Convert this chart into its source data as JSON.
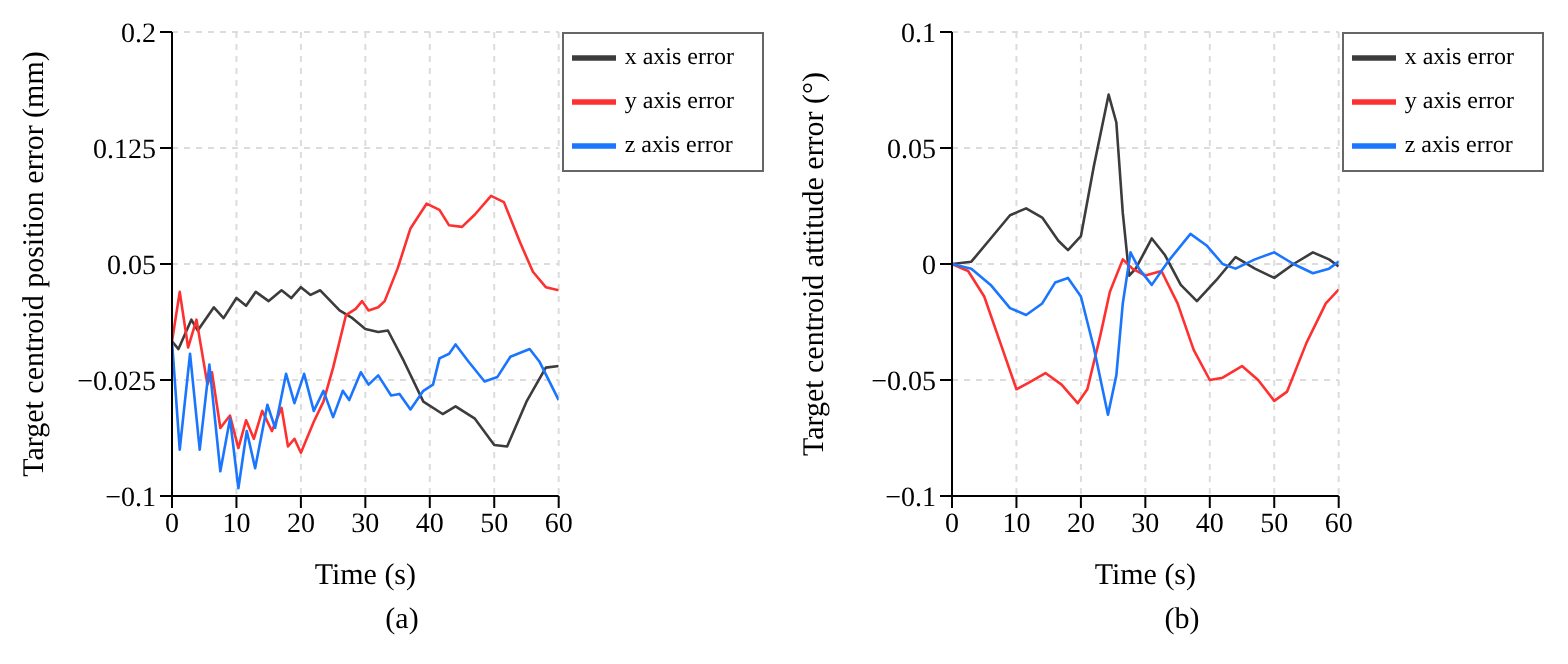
{
  "chart_data": [
    {
      "type": "line",
      "xlabel": "Time (s)",
      "ylabel": "Target centroid position error (mm)",
      "xlim": [
        0,
        60
      ],
      "xticks": [
        0,
        10,
        20,
        30,
        40,
        50,
        60
      ],
      "ylim": [
        -0.1,
        0.2
      ],
      "yticks": [
        0.2,
        0.125,
        0.05,
        -0.025,
        -0.1
      ],
      "grid": true,
      "legend": "top right",
      "annotations": [
        "(a)"
      ],
      "series": [
        {
          "name": "x axis error",
          "color": "#3c3c3c",
          "x": [
            0,
            1,
            3,
            4,
            6.5,
            8,
            10,
            11.5,
            13,
            15,
            17,
            18.5,
            20,
            21.5,
            23,
            26,
            28,
            30,
            32,
            33.5,
            36,
            39,
            42,
            44,
            47,
            50,
            52,
            55,
            58,
            60
          ],
          "values": [
            0,
            -0.005,
            0.014,
            0.007,
            0.022,
            0.015,
            0.028,
            0.023,
            0.032,
            0.026,
            0.033,
            0.028,
            0.035,
            0.03,
            0.033,
            0.02,
            0.015,
            0.008,
            0.006,
            0.007,
            -0.013,
            -0.039,
            -0.047,
            -0.042,
            -0.05,
            -0.067,
            -0.068,
            -0.039,
            -0.017,
            -0.016
          ]
        },
        {
          "name": "y axis error",
          "color": "#ff3030",
          "x": [
            0,
            1.2,
            2.5,
            3.8,
            5.5,
            6.2,
            7.5,
            9,
            10.3,
            11.5,
            12.7,
            14,
            15.5,
            17,
            18,
            19,
            20,
            22,
            23.5,
            25,
            27,
            28.5,
            29.5,
            30.5,
            32,
            33,
            35,
            37,
            39.5,
            41.5,
            43,
            45,
            47,
            49.5,
            51.5,
            54,
            56,
            58,
            60
          ],
          "values": [
            0,
            0.032,
            -0.004,
            0.014,
            -0.028,
            -0.02,
            -0.056,
            -0.048,
            -0.069,
            -0.051,
            -0.063,
            -0.045,
            -0.058,
            -0.043,
            -0.068,
            -0.063,
            -0.072,
            -0.052,
            -0.039,
            -0.017,
            0.017,
            0.021,
            0.026,
            0.02,
            0.022,
            0.026,
            0.047,
            0.073,
            0.089,
            0.085,
            0.075,
            0.074,
            0.082,
            0.094,
            0.09,
            0.064,
            0.045,
            0.035,
            0.033
          ]
        },
        {
          "name": "z axis error",
          "color": "#1a75ff",
          "x": [
            0,
            1.2,
            2.8,
            4.3,
            5.8,
            7.5,
            9,
            10.3,
            11.6,
            12.9,
            14.8,
            16,
            17.7,
            19,
            20.5,
            22,
            23.5,
            25,
            26.5,
            27.5,
            29.3,
            30.5,
            32,
            34,
            35.3,
            37,
            39,
            40.5,
            41.5,
            43,
            44,
            46,
            48.5,
            50.5,
            52.5,
            55.5,
            57,
            60
          ],
          "values": [
            0,
            -0.07,
            -0.008,
            -0.07,
            -0.015,
            -0.084,
            -0.05,
            -0.095,
            -0.058,
            -0.082,
            -0.041,
            -0.056,
            -0.021,
            -0.04,
            -0.021,
            -0.045,
            -0.032,
            -0.049,
            -0.032,
            -0.038,
            -0.02,
            -0.028,
            -0.022,
            -0.035,
            -0.034,
            -0.044,
            -0.032,
            -0.028,
            -0.011,
            -0.008,
            -0.002,
            -0.013,
            -0.026,
            -0.023,
            -0.01,
            -0.005,
            -0.013,
            -0.038
          ]
        }
      ]
    },
    {
      "type": "line",
      "xlabel": "Time (s)",
      "ylabel": "Target centroid attitude error (°)",
      "xlim": [
        0,
        60
      ],
      "xticks": [
        0,
        10,
        20,
        30,
        40,
        50,
        60
      ],
      "ylim": [
        -0.1,
        0.1
      ],
      "yticks": [
        0.1,
        0.05,
        0,
        -0.05,
        -0.1
      ],
      "grid": true,
      "legend": "top right",
      "annotations": [
        "(b)"
      ],
      "series": [
        {
          "name": "x axis error",
          "color": "#3c3c3c",
          "x": [
            0,
            3,
            6,
            9,
            11.5,
            14,
            16.5,
            18,
            20,
            22,
            24.3,
            25.5,
            26.5,
            27.5,
            28.5,
            31,
            33,
            35.5,
            38,
            41,
            44,
            47,
            50,
            53,
            56,
            58.5,
            60
          ],
          "values": [
            0,
            0.001,
            0.011,
            0.021,
            0.024,
            0.02,
            0.01,
            0.006,
            0.012,
            0.042,
            0.073,
            0.061,
            0.022,
            -0.005,
            -0.002,
            0.011,
            0.004,
            -0.009,
            -0.016,
            -0.007,
            0.003,
            -0.002,
            -0.006,
            0,
            0.005,
            0.002,
            -0.001
          ]
        },
        {
          "name": "y axis error",
          "color": "#ff3030",
          "x": [
            0,
            2.5,
            5,
            7.5,
            10,
            12,
            14.5,
            17,
            19.5,
            21,
            23,
            24.5,
            26.5,
            28,
            30,
            32.5,
            35,
            37.5,
            40,
            42,
            45,
            47.5,
            50,
            52,
            55,
            58,
            60
          ],
          "values": [
            0,
            -0.003,
            -0.014,
            -0.034,
            -0.054,
            -0.051,
            -0.047,
            -0.052,
            -0.06,
            -0.054,
            -0.031,
            -0.012,
            0.002,
            -0.002,
            -0.005,
            -0.003,
            -0.017,
            -0.037,
            -0.05,
            -0.049,
            -0.044,
            -0.05,
            -0.059,
            -0.055,
            -0.034,
            -0.017,
            -0.011
          ]
        },
        {
          "name": "z axis error",
          "color": "#1a75ff",
          "x": [
            0,
            3,
            6,
            9,
            11.5,
            14,
            16,
            18,
            20,
            22,
            24.2,
            25.5,
            26.5,
            27.7,
            29,
            31,
            33.5,
            37,
            39.5,
            42,
            44,
            47,
            50,
            53,
            56,
            58.5,
            60
          ],
          "values": [
            0,
            -0.002,
            -0.009,
            -0.019,
            -0.022,
            -0.017,
            -0.008,
            -0.006,
            -0.014,
            -0.036,
            -0.065,
            -0.048,
            -0.017,
            0.005,
            -0.002,
            -0.009,
            0.001,
            0.013,
            0.008,
            0,
            -0.002,
            0.002,
            0.005,
            0,
            -0.004,
            -0.002,
            0.001
          ]
        }
      ]
    }
  ]
}
